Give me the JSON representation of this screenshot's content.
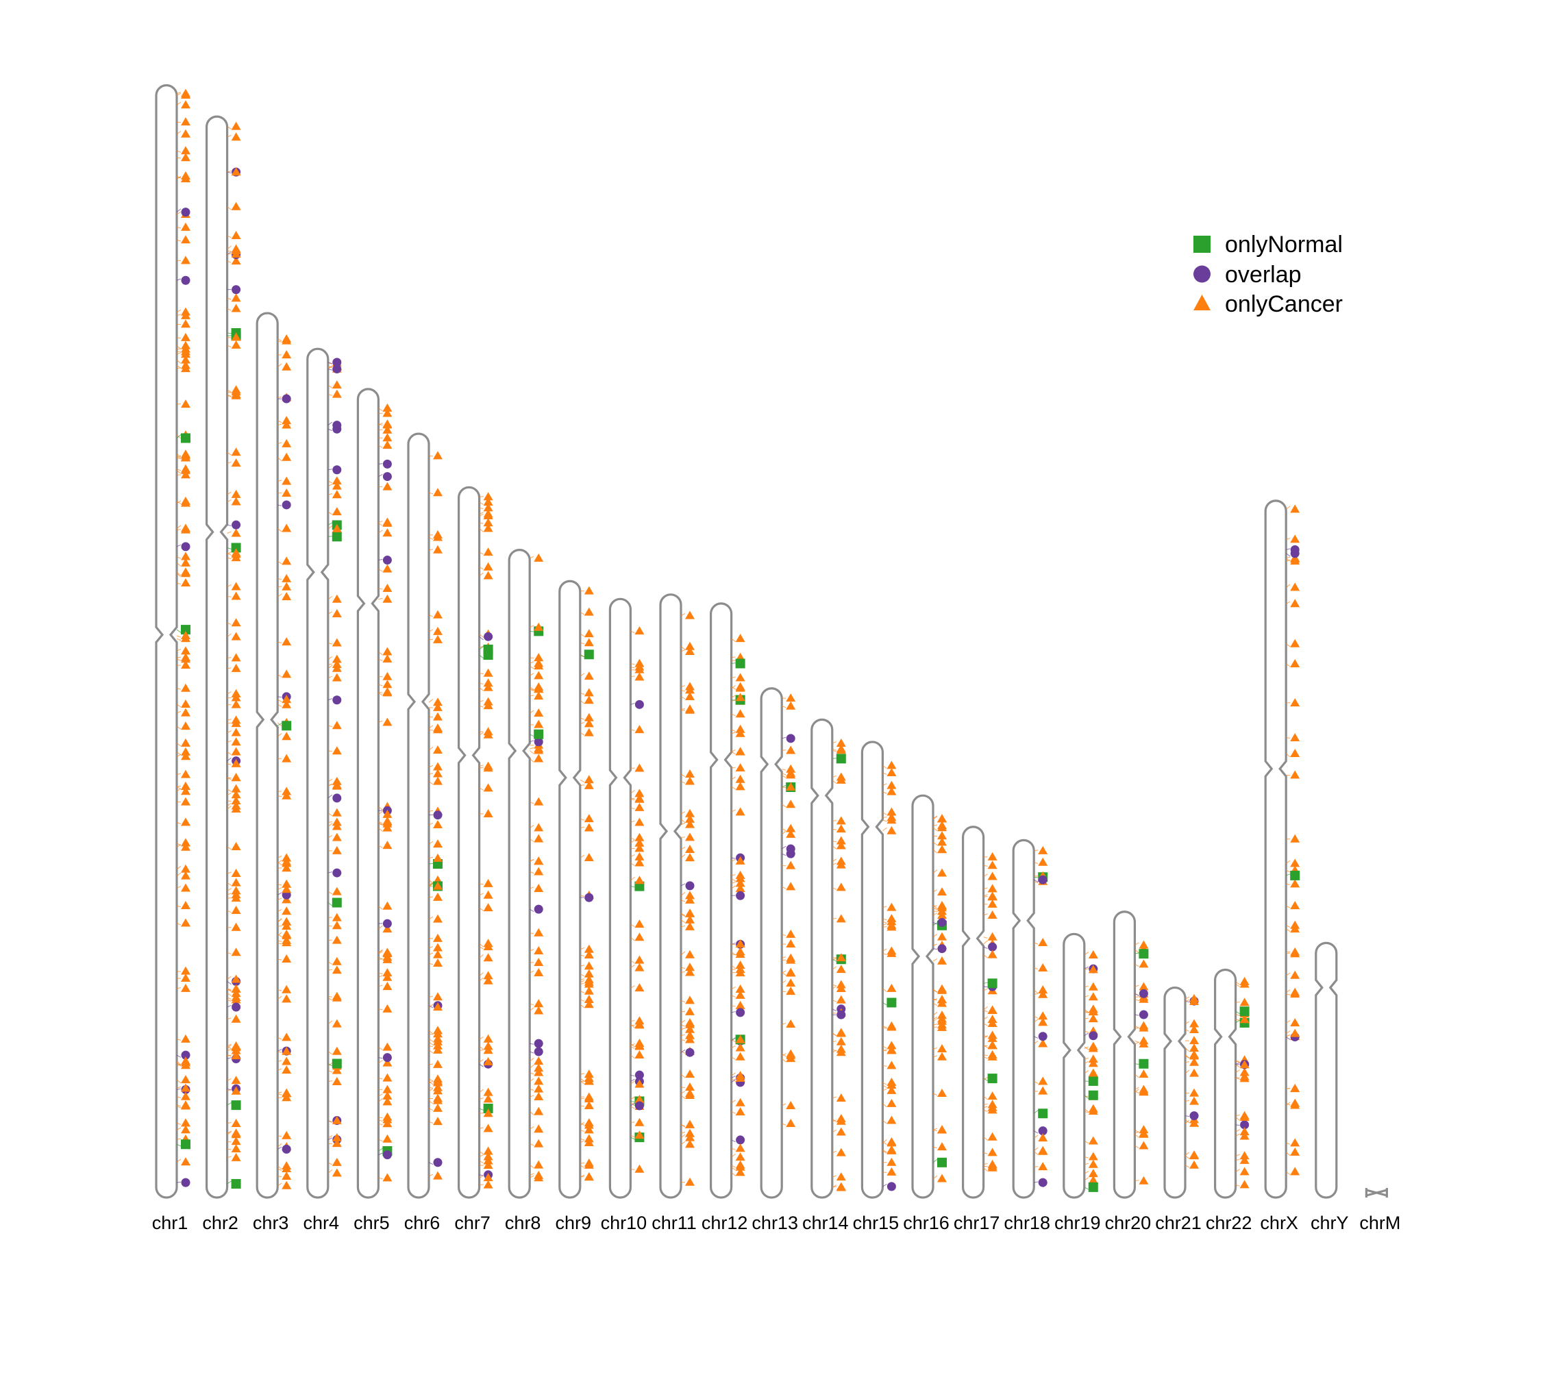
{
  "legend": [
    {
      "label": "onlyNormal",
      "shape": "square",
      "color": "#2ca02c"
    },
    {
      "label": "overlap",
      "shape": "circle",
      "color": "#6a3d9a"
    },
    {
      "label": "onlyCancer",
      "shape": "triangle",
      "color": "#ff7f0e"
    }
  ],
  "colors": {
    "outline": "#8c8c8c",
    "onlyNormal": "#2ca02c",
    "overlap": "#6a3d9a",
    "onlyCancer": "#ff7f0e"
  },
  "chromosomes": [
    {
      "name": "chr1",
      "length_mb": 249,
      "centromere_mb": 123,
      "density": 5
    },
    {
      "name": "chr2",
      "length_mb": 242,
      "centromere_mb": 93,
      "density": 5
    },
    {
      "name": "chr3",
      "length_mb": 198,
      "centromere_mb": 91,
      "density": 4
    },
    {
      "name": "chr4",
      "length_mb": 190,
      "centromere_mb": 50,
      "density": 4
    },
    {
      "name": "chr5",
      "length_mb": 181,
      "centromere_mb": 48,
      "density": 4
    },
    {
      "name": "chr6",
      "length_mb": 171,
      "centromere_mb": 60,
      "density": 4
    },
    {
      "name": "chr7",
      "length_mb": 159,
      "centromere_mb": 60,
      "density": 4
    },
    {
      "name": "chr8",
      "length_mb": 145,
      "centromere_mb": 45,
      "density": 4
    },
    {
      "name": "chr9",
      "length_mb": 138,
      "centromere_mb": 44,
      "density": 4
    },
    {
      "name": "chr10",
      "length_mb": 134,
      "centromere_mb": 40,
      "density": 4
    },
    {
      "name": "chr11",
      "length_mb": 135,
      "centromere_mb": 53,
      "density": 4
    },
    {
      "name": "chr12",
      "length_mb": 133,
      "centromere_mb": 35,
      "density": 5
    },
    {
      "name": "chr13",
      "length_mb": 114,
      "centromere_mb": 17,
      "density": 3
    },
    {
      "name": "chr14",
      "length_mb": 107,
      "centromere_mb": 17,
      "density": 4
    },
    {
      "name": "chr15",
      "length_mb": 102,
      "centromere_mb": 19,
      "density": 4
    },
    {
      "name": "chr16",
      "length_mb": 90,
      "centromere_mb": 36,
      "density": 5
    },
    {
      "name": "chr17",
      "length_mb": 83,
      "centromere_mb": 25,
      "density": 5
    },
    {
      "name": "chr18",
      "length_mb": 80,
      "centromere_mb": 18,
      "density": 3
    },
    {
      "name": "chr19",
      "length_mb": 59,
      "centromere_mb": 26,
      "density": 5
    },
    {
      "name": "chr20",
      "length_mb": 64,
      "centromere_mb": 28,
      "density": 4
    },
    {
      "name": "chr21",
      "length_mb": 47,
      "centromere_mb": 12,
      "density": 4
    },
    {
      "name": "chr22",
      "length_mb": 51,
      "centromere_mb": 15,
      "density": 5
    },
    {
      "name": "chrX",
      "length_mb": 156,
      "centromere_mb": 60,
      "density": 3
    },
    {
      "name": "chrY",
      "length_mb": 57,
      "centromere_mb": 10,
      "density": 0
    },
    {
      "name": "chrM",
      "length_mb": 0.0166,
      "centromere_mb": 0.0083,
      "density": 0
    }
  ]
}
